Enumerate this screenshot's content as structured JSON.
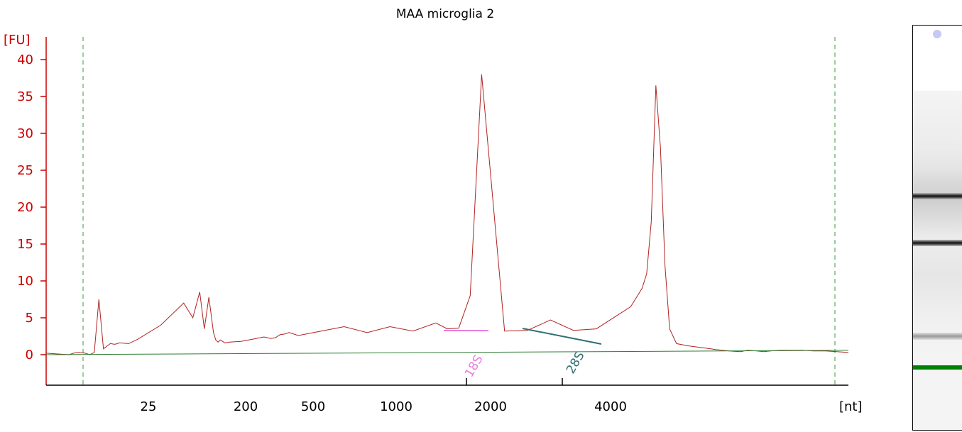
{
  "chart_data": {
    "type": "line",
    "title": "MAA microglia 2",
    "ylabel": "[FU]",
    "xlabel": "[nt]",
    "ylim": [
      -4,
      43
    ],
    "yticks": [
      "0",
      "5",
      "10",
      "15",
      "20",
      "25",
      "30",
      "35",
      "40"
    ],
    "ytick_values": [
      0,
      5,
      10,
      15,
      20,
      25,
      30,
      35,
      40
    ],
    "xtick_labels": [
      "25",
      "200",
      "500",
      "1000",
      "2000",
      "4000"
    ],
    "grid": false,
    "series": [
      {
        "role": "electropherogram",
        "color": "#b22222",
        "x": [
          0,
          5,
          10,
          12,
          14,
          17,
          19,
          21,
          23,
          25,
          28,
          30,
          32,
          36,
          40,
          50,
          60,
          64,
          67,
          69,
          71,
          73,
          74,
          75,
          76,
          77,
          78,
          80,
          85,
          90,
          95,
          98,
          100,
          101,
          102,
          104,
          106,
          110,
          120,
          130,
          140,
          150,
          160,
          170,
          175,
          180,
          185,
          190,
          200,
          210,
          220,
          230,
          240,
          245,
          250,
          255,
          260,
          262,
          264,
          266,
          268,
          270,
          272,
          275,
          280,
          285,
          290,
          292,
          295,
          298,
          300,
          303,
          306,
          310,
          313,
          316,
          320,
          325,
          330,
          335,
          340,
          345,
          350
        ],
        "y": [
          0.2,
          0.1,
          0.0,
          0.2,
          0.3,
          0.2,
          0.0,
          0.3,
          7.5,
          0.8,
          1.5,
          1.4,
          1.6,
          1.5,
          2.1,
          4.0,
          7.0,
          5.0,
          8.5,
          3.5,
          7.8,
          3.0,
          2.0,
          1.7,
          2.0,
          1.8,
          1.6,
          1.7,
          1.8,
          2.1,
          2.4,
          2.2,
          2.3,
          2.5,
          2.7,
          2.8,
          3.0,
          2.6,
          3.2,
          3.8,
          3.0,
          3.8,
          3.2,
          4.3,
          3.5,
          3.6,
          8.0,
          38.0,
          3.2,
          3.3,
          4.7,
          3.3,
          3.5,
          4.5,
          5.5,
          6.5,
          9.0,
          11.0,
          18.0,
          36.5,
          28.0,
          12.0,
          3.5,
          1.5,
          1.2,
          1.0,
          0.8,
          0.7,
          0.6,
          0.5,
          0.45,
          0.4,
          0.6,
          0.5,
          0.4,
          0.5,
          0.6,
          0.6,
          0.6,
          0.5,
          0.5,
          0.4,
          0.3
        ]
      },
      {
        "role": "baseline",
        "color": "#2e7d32",
        "x": [
          0,
          350
        ],
        "y": [
          0,
          0.6
        ]
      }
    ],
    "peaks": [
      {
        "label": "18S",
        "color": "#e87de0"
      },
      {
        "label": "28S",
        "color": "#2f6f6f"
      }
    ],
    "markers": [
      "lower-marker-line",
      "upper-marker-line"
    ]
  },
  "gel": {
    "lane_bands": [
      "upper-marker",
      "28S",
      "18S",
      "small-rna",
      "lower-marker"
    ]
  },
  "colors": {
    "axis_y": "#cc0000",
    "trace": "#b22222",
    "baseline": "#2e7d32",
    "marker_dash": "#3c9a3c",
    "band_18s": "#e87de0",
    "band_28s": "#2f6f6f",
    "gel_lower_marker": "#008000"
  }
}
